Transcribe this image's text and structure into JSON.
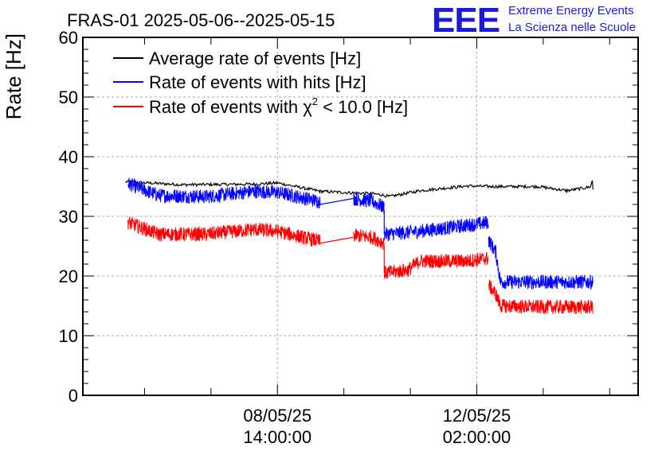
{
  "chart_data": {
    "type": "line",
    "title": "FRAS-01 2025-05-06--2025-05-15",
    "ylabel": "Rate [Hz]",
    "xlabel": "",
    "ylim": [
      0,
      60
    ],
    "yticks": [
      "0",
      "10",
      "20",
      "30",
      "40",
      "50",
      "60"
    ],
    "xticks": [
      {
        "date": "08/05/25",
        "time": "14:00:00",
        "t": 0
      },
      {
        "date": "12/05/25",
        "time": "02:00:00",
        "t": 84
      }
    ],
    "xlim": [
      -82,
      152
    ],
    "grid": true,
    "legend_position": "top-left",
    "series": [
      {
        "name": "Average rate of events [Hz]",
        "color": "#000000",
        "noise": 0.25,
        "points": [
          [
            -64,
            35.8
          ],
          [
            -40,
            35.3
          ],
          [
            -10,
            35.4
          ],
          [
            0,
            35.6
          ],
          [
            18,
            34.2
          ],
          [
            40,
            33.8
          ],
          [
            44,
            33.6
          ],
          [
            47,
            33.3
          ],
          [
            60,
            34.3
          ],
          [
            80,
            35.1
          ],
          [
            90,
            35.0
          ],
          [
            110,
            35.0
          ],
          [
            122,
            34.3
          ],
          [
            130,
            34.8
          ],
          [
            132,
            35.0
          ],
          [
            133,
            36.5
          ],
          [
            133,
            34.5
          ]
        ]
      },
      {
        "name": "Rate of events with hits [Hz]",
        "color": "#0000ff",
        "noise": 1.2,
        "segments": [
          [
            [
              -63,
              35.5
            ],
            [
              -60,
              35.0
            ],
            [
              -50,
              33.5
            ],
            [
              -30,
              33.3
            ],
            [
              -10,
              34.2
            ],
            [
              0,
              34.0
            ],
            [
              18,
              32.5
            ]
          ],
          [
            [
              32,
              33.0
            ],
            [
              40,
              32.5
            ],
            [
              45,
              31.5
            ]
          ],
          [
            [
              45,
              27.0
            ],
            [
              60,
              27.5
            ],
            [
              70,
              28.0
            ],
            [
              86,
              28.8
            ],
            [
              89,
              29.0
            ]
          ],
          [
            [
              89,
              26.0
            ],
            [
              92,
              24.0
            ],
            [
              94,
              19.0
            ],
            [
              110,
              19.0
            ],
            [
              133,
              19.0
            ]
          ]
        ],
        "bridges": [
          [
            [
              18,
              32.0
            ],
            [
              32,
              33.0
            ]
          ],
          [
            [
              45,
              31.0
            ],
            [
              45,
              27.0
            ]
          ]
        ]
      },
      {
        "name": "Rate of events with χ² < 10.0 [Hz]",
        "color": "#ff0000",
        "noise": 1.2,
        "segments": [
          [
            [
              -63,
              29.0
            ],
            [
              -60,
              28.5
            ],
            [
              -50,
              27.0
            ],
            [
              -30,
              27.0
            ],
            [
              -10,
              27.8
            ],
            [
              0,
              27.5
            ],
            [
              18,
              25.8
            ]
          ],
          [
            [
              32,
              26.8
            ],
            [
              40,
              26.5
            ],
            [
              45,
              25.5
            ]
          ],
          [
            [
              45,
              20.5
            ],
            [
              55,
              21.0
            ],
            [
              60,
              22.5
            ],
            [
              80,
              22.5
            ],
            [
              89,
              23.0
            ]
          ],
          [
            [
              89,
              18.5
            ],
            [
              92,
              17.0
            ],
            [
              94,
              15.0
            ],
            [
              110,
              14.8
            ],
            [
              133,
              14.8
            ]
          ]
        ],
        "bridges": [
          [
            [
              18,
              25.5
            ],
            [
              32,
              26.5
            ]
          ],
          [
            [
              45,
              25.0
            ],
            [
              45,
              20.5
            ]
          ]
        ]
      }
    ]
  },
  "logo": {
    "text": "EEE",
    "line1": "Extreme Energy Events",
    "line2": "La Scienza nelle Scuole",
    "color": "#1a1adb"
  },
  "legend": {
    "items": [
      {
        "label": "Average rate of events [Hz]",
        "color": "#000000"
      },
      {
        "label": "Rate of events with hits [Hz]",
        "color": "#0000ff"
      },
      {
        "label_prefix": "Rate of events with ",
        "chi": "χ",
        "sup": "2",
        "label_suffix": " < 10.0 [Hz]",
        "color": "#ff0000"
      }
    ]
  }
}
